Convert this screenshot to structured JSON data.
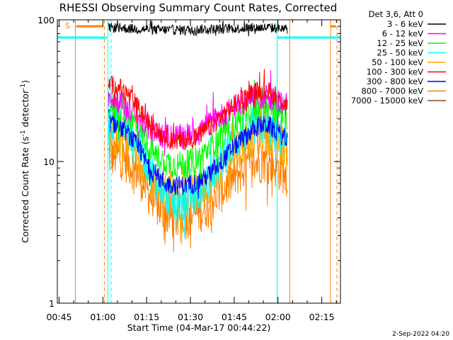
{
  "chart_data": {
    "type": "line",
    "title": "RHESSI Observing Summary Count Rates, Corrected",
    "xlabel": "Start Time (04-Mar-17 00:44:22)",
    "ylabel": "Corrected Count Rate (s",
    "ylabel_sup": "-1",
    "ylabel_tail": " detector",
    "ylabel_tail_sup": "-1",
    "ylabel_end": ")",
    "yscale": "log",
    "ylim": [
      1,
      100
    ],
    "xlim_minutes": [
      0,
      97
    ],
    "xticks": [
      {
        "label": "00:45",
        "minute": 0.6
      },
      {
        "label": "01:00",
        "minute": 15.6
      },
      {
        "label": "01:15",
        "minute": 30.6
      },
      {
        "label": "01:30",
        "minute": 45.6
      },
      {
        "label": "01:45",
        "minute": 60.6
      },
      {
        "label": "02:00",
        "minute": 75.6
      },
      {
        "label": "02:15",
        "minute": 90.6
      }
    ],
    "yticks": [
      {
        "label": "1",
        "value": 1
      },
      {
        "label": "10",
        "value": 10
      },
      {
        "label": "100",
        "value": 100
      }
    ],
    "legend_header": "Det 3,6, Att 0",
    "data_start_minute": 17.5,
    "data_end_minute": 78.8,
    "series": [
      {
        "name": "3 - 6 keV",
        "color": "#000000",
        "values": [
          88,
          88,
          87,
          86,
          86,
          85,
          85,
          85,
          85,
          85,
          86,
          86,
          86,
          87,
          87,
          88,
          88,
          88,
          87,
          86
        ]
      },
      {
        "name": "6 - 12 keV",
        "color": "#ff00ff",
        "values": [
          29,
          27,
          24,
          21,
          18,
          16,
          15,
          15,
          15,
          16,
          17,
          19,
          21,
          23,
          26,
          28,
          29,
          29,
          27,
          25
        ]
      },
      {
        "name": "12 - 25 keV",
        "color": "#00ff00",
        "values": [
          25,
          24,
          21,
          18,
          14,
          11,
          10,
          9.5,
          9.5,
          10,
          11,
          13,
          15,
          17,
          20,
          23,
          25,
          25,
          23,
          21
        ]
      },
      {
        "name": "25 - 50 keV",
        "color": "#00ffff",
        "values": [
          20,
          19,
          17,
          14,
          10,
          7.5,
          6,
          5,
          5,
          5.5,
          6.5,
          8,
          10,
          12.5,
          15,
          17,
          18,
          17,
          15,
          13
        ]
      },
      {
        "name": "50 - 100 keV",
        "color": "#ffa500",
        "values": [
          16,
          15,
          14,
          12,
          9,
          7,
          6,
          5.5,
          5.5,
          6,
          6.5,
          7.5,
          9,
          11,
          13,
          15,
          16,
          16,
          14,
          12
        ]
      },
      {
        "name": "100 - 300 keV",
        "color": "#ff0000",
        "values": [
          35,
          34,
          30,
          25,
          20,
          17,
          15,
          14,
          14,
          14.5,
          16,
          18,
          21,
          24,
          27,
          30,
          32,
          31,
          28,
          25
        ]
      },
      {
        "name": "300 - 800 keV",
        "color": "#0000ff",
        "values": [
          19,
          18,
          16,
          13,
          10,
          8,
          7,
          6.8,
          6.8,
          7,
          7.5,
          8.5,
          10,
          12,
          14,
          16,
          18,
          18,
          16,
          14
        ]
      },
      {
        "name": "800 - 7000 keV",
        "color": "#ff7f00",
        "values": [
          11,
          11,
          10,
          8.5,
          6.5,
          5,
          4.3,
          4,
          4,
          4.2,
          4.6,
          5.3,
          6.2,
          7.3,
          8.5,
          9.5,
          10,
          10,
          9,
          8
        ]
      },
      {
        "name": "7000 - 15000 keV",
        "color": "#8b4513",
        "values": [
          11,
          11,
          10,
          8.5,
          6.5,
          5,
          4.3,
          4,
          4,
          4.2,
          4.6,
          5.3,
          6.2,
          7.3,
          8.5,
          9.5,
          10,
          10,
          9,
          8
        ]
      }
    ],
    "markers": {
      "saa_label": "S",
      "orange_solid_minutes": [
        6.2,
        79.6,
        93.6
      ],
      "orange_dashed_minutes": [
        16.1,
        95.8
      ],
      "cyan_solid_minutes": [
        0.0,
        17.3,
        75.3,
        97.0
      ],
      "cyan_dashed_minutes": [
        18.4
      ],
      "attenuator_level": 75,
      "saa_bars": [
        [
          6.5,
          15.8
        ],
        [
          93.5,
          95.5
        ]
      ],
      "saa_bar_level": 90
    }
  },
  "footer": {
    "timestamp": "2-Sep-2022 04:20"
  }
}
